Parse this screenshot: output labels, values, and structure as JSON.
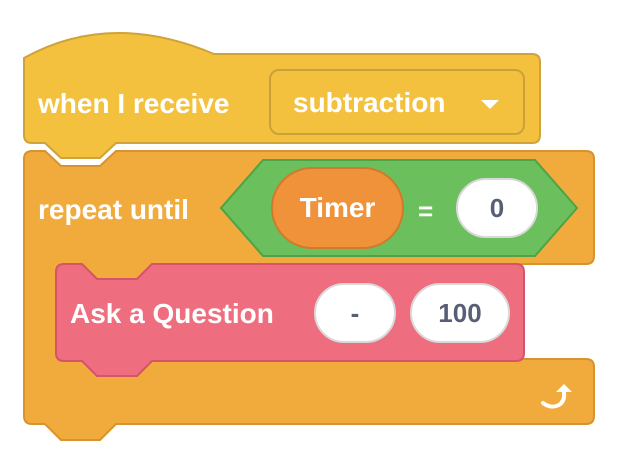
{
  "hat_block": {
    "label": "when I receive",
    "message_selected": "subtraction",
    "color": "#F3C13E"
  },
  "repeat_block": {
    "label": "repeat until",
    "color": "#F1AA3C",
    "condition": {
      "operator": "=",
      "color": "#6BBF5C",
      "left_reporter": "Timer",
      "left_reporter_color": "#EF923A",
      "right_value": "0"
    }
  },
  "ask_block": {
    "label": "Ask a Question",
    "color": "#EE6E7F",
    "arg1": "-",
    "arg2": "100"
  },
  "icons": {
    "dropdown": "chevron-down-icon",
    "loop": "loop-arrow-icon"
  }
}
